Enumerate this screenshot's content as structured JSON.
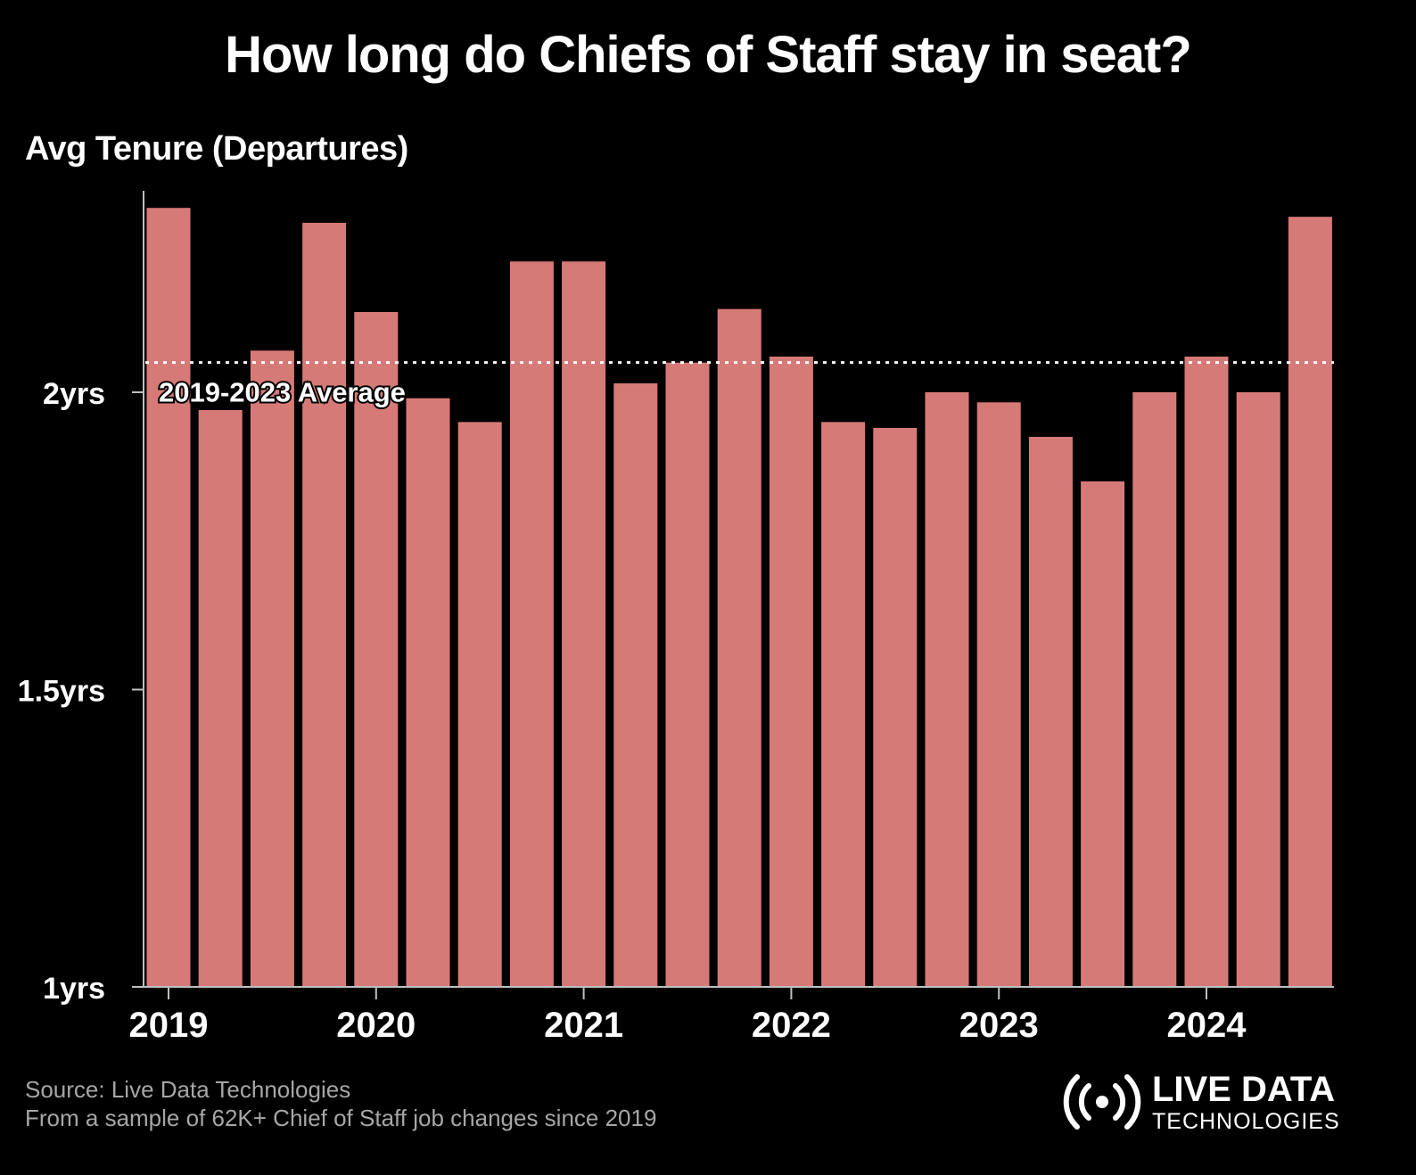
{
  "title": "How long do Chiefs of Staff stay in seat?",
  "source": {
    "line1": "Source: Live Data Technologies",
    "line2": "From a sample of 62K+ Chief of Staff job changes since 2019"
  },
  "logo": {
    "line1": "LIVE DATA",
    "line2": "TECHNOLOGIES",
    "icon": "broadcast-signal-icon"
  },
  "colors": {
    "background": "#000000",
    "bar": "#d67a78",
    "text": "#ffffff",
    "axis": "#bfbfbf",
    "source": "#a6a6a6"
  },
  "chart_data": {
    "type": "bar",
    "title": "How long do Chiefs of Staff stay in seat?",
    "ylabel": "Avg Tenure (Departures)",
    "xlabel": "",
    "ylim": [
      1,
      2.35
    ],
    "yticks": [
      {
        "value": 1,
        "label": "1yrs"
      },
      {
        "value": 1.5,
        "label": "1.5yrs"
      },
      {
        "value": 2,
        "label": "2yrs"
      }
    ],
    "xticks": [
      {
        "index": 0,
        "label": "2019"
      },
      {
        "index": 4,
        "label": "2020"
      },
      {
        "index": 8,
        "label": "2021"
      },
      {
        "index": 12,
        "label": "2022"
      },
      {
        "index": 16,
        "label": "2023"
      },
      {
        "index": 20,
        "label": "2024"
      }
    ],
    "values": [
      2.31,
      1.97,
      2.07,
      2.285,
      2.135,
      1.99,
      1.95,
      2.22,
      2.22,
      2.015,
      2.05,
      2.14,
      2.06,
      1.95,
      1.94,
      2.0,
      1.983,
      1.925,
      1.85,
      2.0,
      2.06,
      2.0,
      2.295
    ],
    "reference_line": {
      "value": 2.05,
      "label": "2019-2023 Average",
      "style": "dotted"
    },
    "grid": false,
    "legend": "none"
  }
}
